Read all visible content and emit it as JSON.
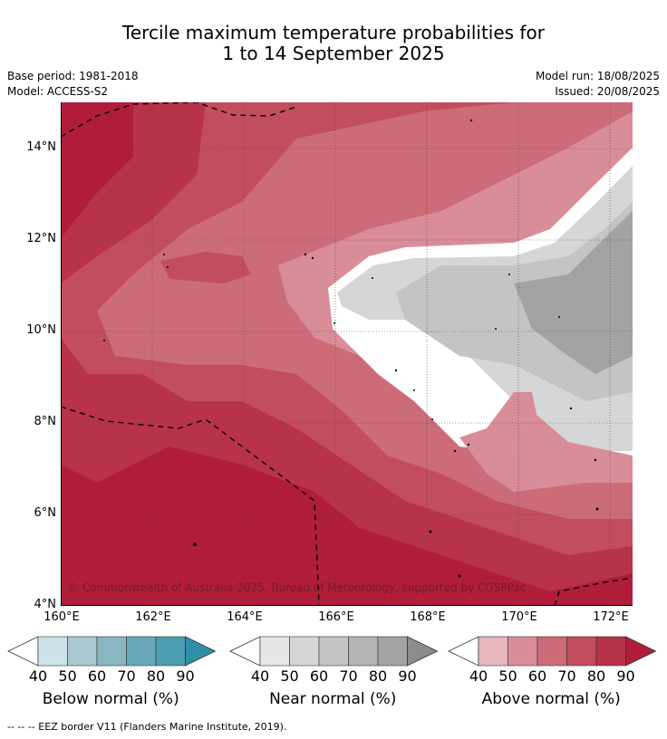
{
  "title": {
    "line1": "Tercile maximum temperature probabilities for",
    "line2": "1 to 14 September 2025"
  },
  "meta": {
    "base_period": "Base period: 1981-2018",
    "model": "Model: ACCESS-S2",
    "model_run": "Model run: 18/08/2025",
    "issued": "Issued: 20/08/2025"
  },
  "map": {
    "y_ticks": [
      "14°N",
      "12°N",
      "10°N",
      "8°N",
      "6°N",
      "4°N"
    ],
    "x_ticks": [
      "160°E",
      "162°E",
      "164°E",
      "166°E",
      "168°E",
      "170°E",
      "172°E"
    ],
    "copyright": "© Commonwealth of Australia 2025, Bureau of Meteorology, supported by COSPPac"
  },
  "colorbars": [
    {
      "label": "Below normal (%)",
      "ticks": [
        "40",
        "50",
        "60",
        "70",
        "80",
        "90"
      ],
      "colors": [
        "#ffffff",
        "#cde3ea",
        "#aac8d0",
        "#88b6c3",
        "#68a8b8",
        "#4a9db0",
        "#2e8fa6"
      ]
    },
    {
      "label": "Near normal (%)",
      "ticks": [
        "40",
        "50",
        "60",
        "70",
        "80",
        "90"
      ],
      "colors": [
        "#ffffff",
        "#e6e6e6",
        "#d6d6d6",
        "#c4c4c4",
        "#b3b3b3",
        "#a3a3a3",
        "#8c8c8c"
      ]
    },
    {
      "label": "Above normal (%)",
      "ticks": [
        "40",
        "50",
        "60",
        "70",
        "80",
        "90"
      ],
      "colors": [
        "#ffffff",
        "#e5b6bc",
        "#d98d98",
        "#cd6c79",
        "#c24d5f",
        "#b8334a",
        "#b01d3a"
      ]
    }
  ],
  "footer": "--  --  -- EEZ border V11 (Flanders Marine Institute, 2019)."
}
